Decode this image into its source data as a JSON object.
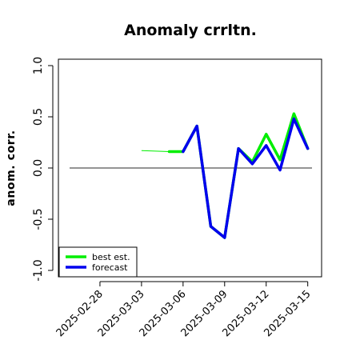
{
  "chart_data": {
    "type": "line",
    "title": "Anomaly crrltn.",
    "ylabel": "anom. corr.",
    "xlabel": "",
    "ylim": [
      -1.0,
      1.0
    ],
    "yticks": [
      -1.0,
      -0.5,
      0.0,
      0.5,
      1.0
    ],
    "ytick_labels": [
      "-1.0",
      "-0.5",
      "0.0",
      "0.5",
      "1.0"
    ],
    "xlim": [
      "2025-02-25",
      "2025-03-16"
    ],
    "xticks": [
      "2025-02-28",
      "2025-03-03",
      "2025-03-06",
      "2025-03-09",
      "2025-03-12",
      "2025-03-15"
    ],
    "xtick_labels": [
      "2025-02-28",
      "2025-03-03",
      "2025-03-06",
      "2025-03-09",
      "2025-03-12",
      "2025-03-15"
    ],
    "highlight_tick": "2025-03-06",
    "highlight_color": "#228B22",
    "reference_line": 0.0,
    "grid": false,
    "legend_position": "bottom-left",
    "series": [
      {
        "name": "best est.",
        "color": "#00ee00",
        "x": [
          "2025-03-03",
          "2025-03-05",
          "2025-03-06",
          "2025-03-07",
          "2025-03-08",
          "2025-03-09",
          "2025-03-10",
          "2025-03-11",
          "2025-03-12",
          "2025-03-13",
          "2025-03-14",
          "2025-03-15"
        ],
        "y": [
          0.17,
          0.16,
          0.16,
          0.41,
          -0.57,
          -0.68,
          0.19,
          0.06,
          0.33,
          0.08,
          0.53,
          0.19
        ],
        "dashed_until": "2025-03-05"
      },
      {
        "name": "forecast",
        "color": "#0000ee",
        "x": [
          "2025-03-06",
          "2025-03-07",
          "2025-03-08",
          "2025-03-09",
          "2025-03-10",
          "2025-03-11",
          "2025-03-12",
          "2025-03-13",
          "2025-03-14",
          "2025-03-15"
        ],
        "y": [
          0.16,
          0.41,
          -0.57,
          -0.68,
          0.19,
          0.04,
          0.22,
          -0.02,
          0.48,
          0.19
        ]
      }
    ]
  }
}
